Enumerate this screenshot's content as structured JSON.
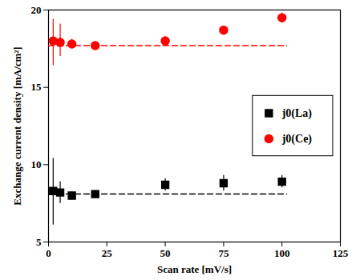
{
  "chart_data": {
    "type": "scatter",
    "x_label": "Scan rate [mV/s]",
    "y_label": "Exchange current density [mA/cm²]",
    "xlim": [
      0,
      125
    ],
    "xticks": [
      0,
      25,
      50,
      75,
      100,
      125
    ],
    "ylim": [
      5,
      20
    ],
    "yticks": [
      5,
      10,
      15,
      20
    ],
    "grid": false,
    "legend": "right",
    "series": [
      {
        "name": "j0(La)",
        "color": "#000000",
        "marker": "square",
        "x": [
          2,
          5,
          10,
          20,
          50,
          75,
          100
        ],
        "values": [
          8.3,
          8.2,
          8.0,
          8.1,
          8.7,
          8.8,
          8.9
        ],
        "error_low": [
          6.1,
          7.5,
          7.75,
          8.0,
          8.3,
          8.3,
          8.5
        ],
        "error_high": [
          10.4,
          8.9,
          8.25,
          8.2,
          9.1,
          9.3,
          9.3
        ],
        "fit": {
          "x": [
            0,
            102
          ],
          "value": 8.1,
          "line_style": "dashed"
        }
      },
      {
        "name": "j0(Ce)",
        "color": "#ff0000",
        "marker": "circle",
        "x": [
          2,
          5,
          10,
          20,
          50,
          75,
          100
        ],
        "values": [
          18.0,
          17.9,
          17.8,
          17.7,
          18.0,
          18.7,
          19.5
        ],
        "error_low": [
          16.4,
          17.0,
          17.5,
          17.6,
          17.7,
          18.5,
          19.2
        ],
        "error_high": [
          19.4,
          19.1,
          18.1,
          17.8,
          18.3,
          18.9,
          19.8
        ],
        "fit": {
          "x": [
            0,
            102
          ],
          "value": 17.7,
          "line_style": "dashed"
        }
      }
    ]
  }
}
